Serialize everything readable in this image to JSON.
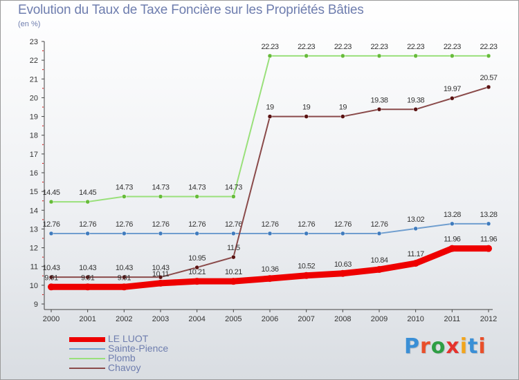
{
  "title": "Evolution du Taux de Taxe Foncière sur les Propriétés Bâties",
  "unit_label": "(en %)",
  "brand": {
    "text": "Proxiti",
    "letter_colors": [
      "#3a8fd6",
      "#e94f2a",
      "#2e9e44",
      "#e5322d",
      "#f2a51d",
      "#3a8fd6",
      "#e94f2a"
    ]
  },
  "chart_data": {
    "type": "line",
    "title": "Evolution du Taux de Taxe Foncière sur les Propriétés Bâties",
    "ylabel": "(en %)",
    "xlabel": "",
    "ylim": [
      9,
      23
    ],
    "yticks": [
      "9",
      "10",
      "11",
      "12",
      "13",
      "14",
      "15",
      "16",
      "17",
      "18",
      "19",
      "20",
      "21",
      "22",
      "23"
    ],
    "categories": [
      "2000",
      "2001",
      "2002",
      "2003",
      "2004",
      "2005",
      "2006",
      "2007",
      "2008",
      "2009",
      "2010",
      "2011",
      "2012"
    ],
    "grid": false,
    "legend": "bottom-left",
    "series": [
      {
        "name": "LE LUOT",
        "color": "#ee0000",
        "marker": "#ee0000",
        "width": 9,
        "values": [
          9.91,
          9.91,
          9.91,
          10.11,
          10.21,
          10.21,
          10.36,
          10.52,
          10.63,
          10.84,
          11.17,
          11.96,
          11.96
        ],
        "labels": [
          "9.91",
          "9.91",
          "9.91",
          "10.11",
          "10.21",
          "10.21",
          "10.36",
          "10.52",
          "10.63",
          "10.84",
          "11.17",
          "11.96",
          "11.96"
        ]
      },
      {
        "name": "Sainte-Pience",
        "color": "#6f9ecf",
        "marker": "#3f7bbd",
        "width": 2,
        "values": [
          12.76,
          12.76,
          12.76,
          12.76,
          12.76,
          12.76,
          12.76,
          12.76,
          12.76,
          12.76,
          13.02,
          13.28,
          13.28
        ],
        "labels": [
          "12.76",
          "12.76",
          "12.76",
          "12.76",
          "12.76",
          "12.76",
          "12.76",
          "12.76",
          "12.76",
          "12.76",
          "13.02",
          "13.28",
          "13.28"
        ]
      },
      {
        "name": "Plomb",
        "color": "#99e07a",
        "marker": "#66bb3a",
        "width": 2,
        "values": [
          14.45,
          14.45,
          14.73,
          14.73,
          14.73,
          14.73,
          22.23,
          22.23,
          22.23,
          22.23,
          22.23,
          22.23,
          22.23
        ],
        "labels": [
          "14.45",
          "14.45",
          "14.73",
          "14.73",
          "14.73",
          "14.73",
          "22.23",
          "22.23",
          "22.23",
          "22.23",
          "22.23",
          "22.23",
          "22.23"
        ]
      },
      {
        "name": "Chavoy",
        "color": "#8a4a4a",
        "marker": "#5a1212",
        "width": 2,
        "values": [
          10.43,
          10.43,
          10.43,
          10.43,
          10.95,
          11.5,
          19,
          19,
          19,
          19.38,
          19.38,
          19.97,
          20.57
        ],
        "labels": [
          "10.43",
          "10.43",
          "10.43",
          "10.43",
          "10.95",
          "11.5",
          "19",
          "19",
          "19",
          "19.38",
          "19.38",
          "19.97",
          "20.57"
        ]
      }
    ]
  }
}
